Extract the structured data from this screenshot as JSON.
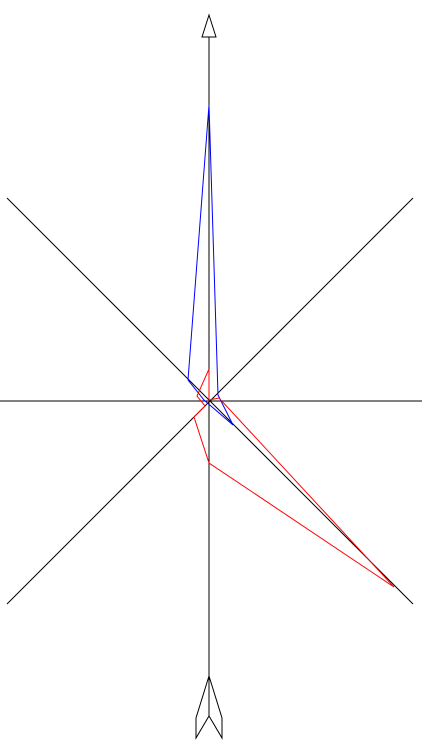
{
  "diagram": {
    "axes_color": "#000000",
    "series": [
      {
        "color": "#0000ff"
      },
      {
        "color": "#ff0000"
      }
    ]
  }
}
